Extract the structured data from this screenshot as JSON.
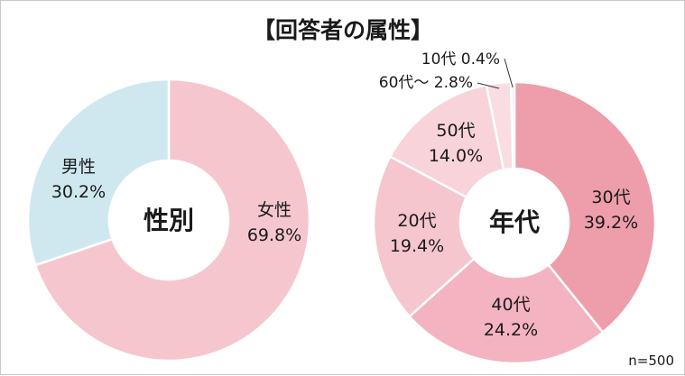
{
  "title": "【回答者の属性】",
  "note": "n=500",
  "colors": {
    "female": "#f6c6cf",
    "male": "#cfe8f0",
    "age30": "#ee9daa",
    "age40": "#f3b3c0",
    "age20": "#f6c6cf",
    "age50": "#f8d3da",
    "age60": "#f9dde2",
    "age10": "#fbe6ea",
    "separator": "#ffffff"
  },
  "chart_data": [
    {
      "type": "pie",
      "center_label": "性別",
      "categories": [
        "女性",
        "男性"
      ],
      "values": [
        69.8,
        30.2
      ],
      "value_labels": [
        "69.8%",
        "30.2%"
      ],
      "title": ""
    },
    {
      "type": "pie",
      "center_label": "年代",
      "categories": [
        "30代",
        "40代",
        "20代",
        "50代",
        "60代～",
        "10代"
      ],
      "values": [
        39.2,
        24.2,
        19.4,
        14.0,
        2.8,
        0.4
      ],
      "value_labels": [
        "39.2%",
        "24.2%",
        "19.4%",
        "14.0%",
        "2.8%",
        "0.4%"
      ],
      "title": ""
    }
  ]
}
